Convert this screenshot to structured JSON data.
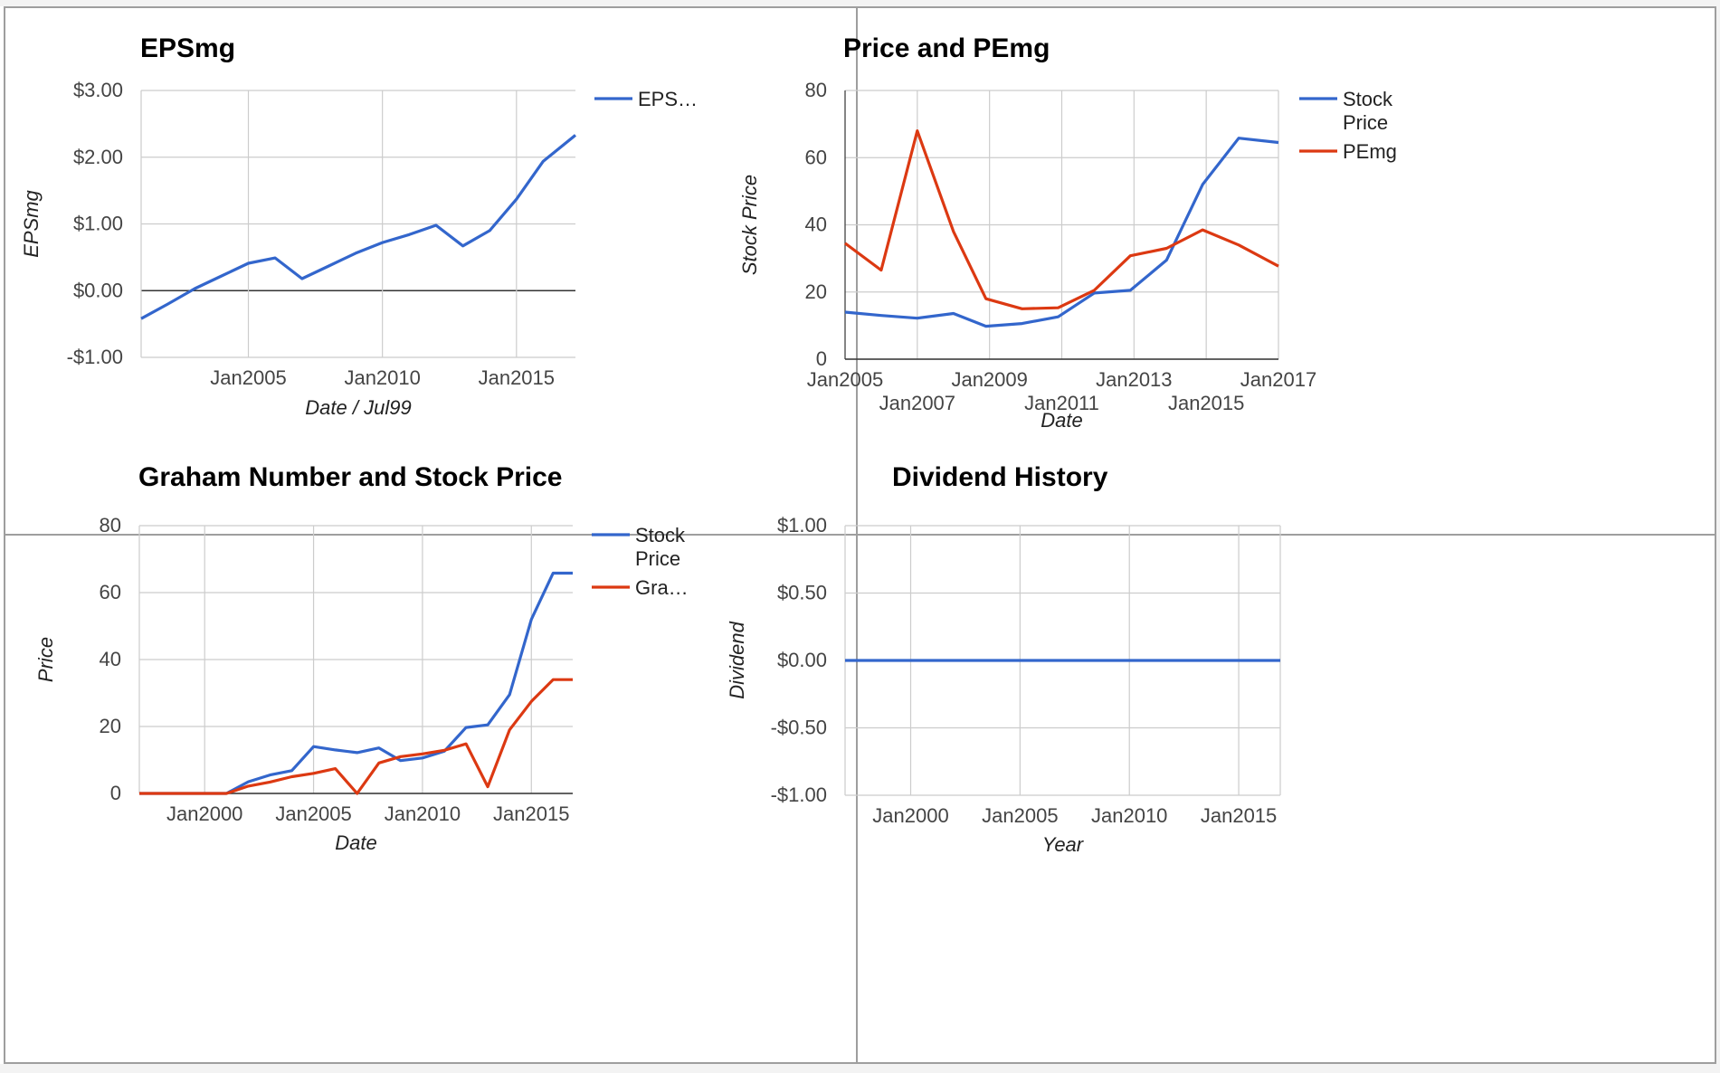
{
  "chart_data": [
    {
      "id": "epsmg",
      "type": "line",
      "title": "EPSmg",
      "xlabel": "Date / Jul99",
      "ylabel": "EPSmg",
      "xlim": [
        2000.0,
        2016.2
      ],
      "ylim": [
        -1,
        3
      ],
      "y_ticks": [
        {
          "value": 3,
          "label": "$3.00"
        },
        {
          "value": 2,
          "label": "$2.00"
        },
        {
          "value": 1,
          "label": "$1.00"
        },
        {
          "value": 0,
          "label": "$0.00"
        },
        {
          "value": -1,
          "label": "-$1.00"
        }
      ],
      "x_ticks": [
        {
          "value": 2004.0,
          "label": "Jan2005",
          "row": 0
        },
        {
          "value": 2009.0,
          "label": "Jan2010",
          "row": 0
        },
        {
          "value": 2014.0,
          "label": "Jan2015",
          "row": 0
        }
      ],
      "baseline": 0,
      "legend_position": "right",
      "series": [
        {
          "name": "EPS…",
          "color": "#3366cc",
          "x": [
            2000.0,
            2001.0,
            2002.0,
            2003.0,
            2004.0,
            2005.0,
            2006.0,
            2007.0,
            2008.0,
            2009.0,
            2010.0,
            2011.0,
            2012.0,
            2013.0,
            2014.0,
            2015.0,
            2016.2
          ],
          "y": [
            -0.42,
            -0.2,
            0.03,
            0.22,
            0.41,
            0.49,
            0.18,
            0.37,
            0.56,
            0.72,
            0.84,
            0.98,
            0.67,
            0.9,
            1.37,
            1.94,
            2.33
          ]
        }
      ]
    },
    {
      "id": "price-pemg",
      "type": "line",
      "title": "Price and PEmg",
      "xlabel": "Date",
      "ylabel": "Stock Price",
      "xlim": [
        2005.0,
        2017.0
      ],
      "ylim": [
        0,
        80
      ],
      "y_ticks": [
        {
          "value": 80,
          "label": "80"
        },
        {
          "value": 60,
          "label": "60"
        },
        {
          "value": 40,
          "label": "40"
        },
        {
          "value": 20,
          "label": "20"
        },
        {
          "value": 0,
          "label": "0"
        }
      ],
      "x_ticks": [
        {
          "value": 2005.0,
          "label": "Jan2005",
          "row": 0
        },
        {
          "value": 2007.0,
          "label": "Jan2007",
          "row": 1
        },
        {
          "value": 2009.0,
          "label": "Jan2009",
          "row": 0
        },
        {
          "value": 2011.0,
          "label": "Jan2011",
          "row": 1
        },
        {
          "value": 2013.0,
          "label": "Jan2013",
          "row": 0
        },
        {
          "value": 2015.0,
          "label": "Jan2015",
          "row": 1
        },
        {
          "value": 2017.0,
          "label": "Jan2017",
          "row": 0
        }
      ],
      "legend_position": "right",
      "series": [
        {
          "name": "Stock Price",
          "legend_lines": [
            "Stock",
            "Price"
          ],
          "color": "#3366cc",
          "x": [
            2005.0,
            2006.0,
            2007.0,
            2008.0,
            2008.9,
            2009.9,
            2010.9,
            2011.9,
            2012.9,
            2013.9,
            2014.9,
            2015.9,
            2017.0
          ],
          "y": [
            14,
            13,
            12.2,
            13.6,
            9.8,
            10.6,
            12.6,
            19.7,
            20.5,
            29.5,
            52,
            65.8,
            64.5
          ]
        },
        {
          "name": "PEmg",
          "color": "#dc3912",
          "x": [
            2005.0,
            2006.0,
            2007.0,
            2008.0,
            2008.9,
            2009.9,
            2010.9,
            2011.9,
            2012.9,
            2013.9,
            2014.9,
            2015.9,
            2017.0
          ],
          "y": [
            34.5,
            26.5,
            68,
            38,
            18,
            15,
            15.3,
            20.5,
            30.8,
            33,
            38.5,
            34,
            27.7
          ]
        }
      ]
    },
    {
      "id": "graham",
      "type": "line",
      "title": "Graham Number and Stock Price",
      "xlabel": "Date",
      "ylabel": "Price",
      "xlim": [
        1996.0,
        2015.9
      ],
      "ylim": [
        0,
        80
      ],
      "y_ticks": [
        {
          "value": 80,
          "label": "80"
        },
        {
          "value": 60,
          "label": "60"
        },
        {
          "value": 40,
          "label": "40"
        },
        {
          "value": 20,
          "label": "20"
        },
        {
          "value": 0,
          "label": "0"
        }
      ],
      "x_ticks": [
        {
          "value": 1999.0,
          "label": "Jan2000",
          "row": 0
        },
        {
          "value": 2004.0,
          "label": "Jan2005",
          "row": 0
        },
        {
          "value": 2009.0,
          "label": "Jan2010",
          "row": 0
        },
        {
          "value": 2014.0,
          "label": "Jan2015",
          "row": 0
        }
      ],
      "legend_position": "right",
      "series": [
        {
          "name": "Stock Price",
          "legend_lines": [
            "Stock",
            "Price"
          ],
          "color": "#3366cc",
          "x": [
            1996.0,
            1997.0,
            1998.0,
            1999.0,
            2000.0,
            2001.0,
            2002.0,
            2003.0,
            2004.0,
            2005.0,
            2006.0,
            2007.0,
            2008.0,
            2009.0,
            2010.0,
            2011.0,
            2012.0,
            2013.0,
            2014.0,
            2015.0,
            2015.9
          ],
          "y": [
            0,
            0,
            0,
            0,
            0,
            3.5,
            5.5,
            6.8,
            14,
            13,
            12.2,
            13.6,
            9.8,
            10.6,
            12.6,
            19.7,
            20.5,
            29.5,
            52,
            65.8,
            65.8
          ]
        },
        {
          "name": "Gra…",
          "color": "#dc3912",
          "x": [
            1996.0,
            1997.0,
            1998.0,
            1999.0,
            2000.0,
            2001.0,
            2002.0,
            2003.0,
            2004.0,
            2005.0,
            2006.0,
            2007.0,
            2008.0,
            2009.0,
            2010.0,
            2011.0,
            2012.0,
            2013.0,
            2014.0,
            2015.0,
            2015.9
          ],
          "y": [
            0,
            0,
            0,
            0,
            0,
            2.2,
            3.4,
            5.0,
            6.0,
            7.4,
            0,
            9.1,
            11,
            11.8,
            12.9,
            14.8,
            2,
            19,
            27.5,
            34,
            34
          ]
        }
      ]
    },
    {
      "id": "dividend",
      "type": "line",
      "title": "Dividend History",
      "xlabel": "Year",
      "ylabel": "Dividend",
      "xlim": [
        1996.0,
        2015.9
      ],
      "ylim": [
        -1,
        1
      ],
      "y_ticks": [
        {
          "value": 1,
          "label": "$1.00"
        },
        {
          "value": 0.5,
          "label": "$0.50"
        },
        {
          "value": 0,
          "label": "$0.00"
        },
        {
          "value": -0.5,
          "label": "-$0.50"
        },
        {
          "value": -1,
          "label": "-$1.00"
        }
      ],
      "x_ticks": [
        {
          "value": 1999.0,
          "label": "Jan2000",
          "row": 0
        },
        {
          "value": 2004.0,
          "label": "Jan2005",
          "row": 0
        },
        {
          "value": 2009.0,
          "label": "Jan2010",
          "row": 0
        },
        {
          "value": 2014.0,
          "label": "Jan2015",
          "row": 0
        }
      ],
      "legend_position": "none",
      "series": [
        {
          "name": "",
          "color": "#3366cc",
          "x": [
            1996.0,
            2015.9
          ],
          "y": [
            0,
            0
          ]
        }
      ]
    }
  ]
}
